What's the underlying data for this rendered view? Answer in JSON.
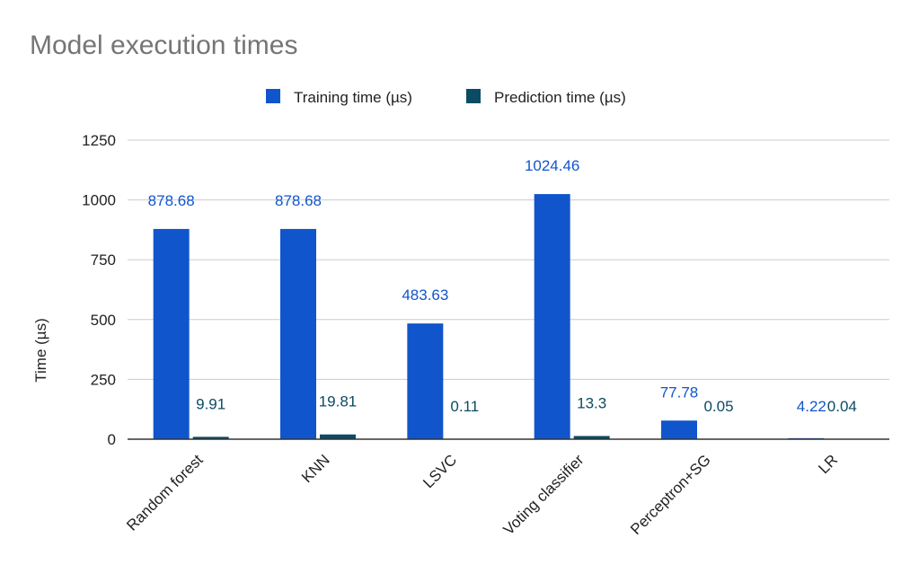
{
  "chart_data": {
    "type": "bar",
    "title": "Model execution times",
    "xlabel": "",
    "ylabel": "Time (µs)",
    "ylim": [
      0,
      1250
    ],
    "yticks": [
      0,
      250,
      500,
      750,
      1000,
      1250
    ],
    "grid": true,
    "legend_position": "top",
    "categories": [
      "Random forest",
      "KNN",
      "LSVC",
      "Voting classifier",
      "Perceptron+SG",
      "LR"
    ],
    "series": [
      {
        "name": "Training time (µs)",
        "color": "#1155cc",
        "label_color": "#1155cc",
        "values": [
          878.68,
          878.68,
          483.63,
          1024.46,
          77.78,
          4.22
        ]
      },
      {
        "name": "Prediction time (µs)",
        "color": "#0b4b63",
        "label_color": "#0b4b63",
        "values": [
          9.91,
          19.81,
          0.11,
          13.3,
          0.05,
          0.04
        ]
      }
    ]
  }
}
